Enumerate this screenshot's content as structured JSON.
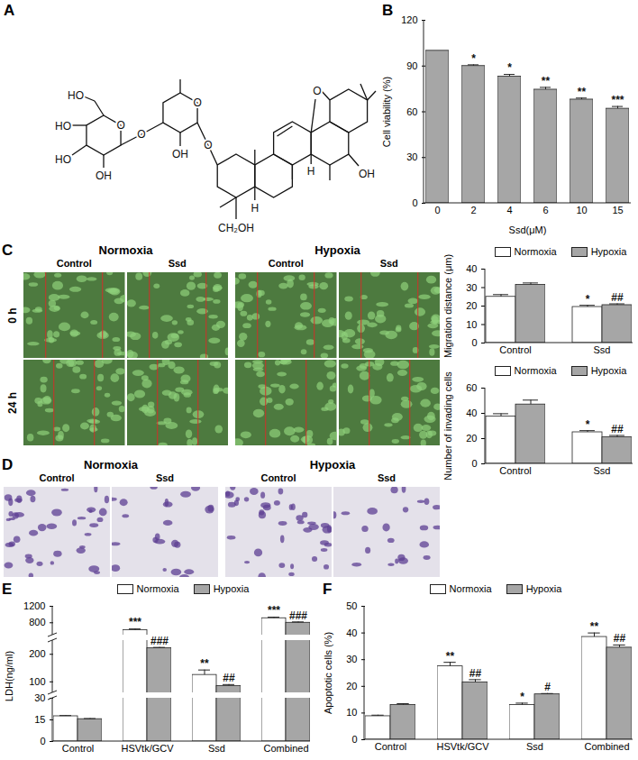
{
  "figure": {
    "A": {
      "label": "A",
      "structure_labels": [
        "HO",
        "HO",
        "HO",
        "OH",
        "O",
        "O",
        "O",
        "OH",
        "O",
        "CH₂OH",
        "H",
        "H",
        "OH",
        "O"
      ]
    },
    "C": {
      "label": "C",
      "groups": [
        "Normoxia",
        "Hypoxia"
      ],
      "columns": [
        "Control",
        "Ssd"
      ],
      "rows": [
        "0 h",
        "24 h"
      ]
    },
    "D": {
      "label": "D",
      "groups": [
        "Normoxia",
        "Hypoxia"
      ],
      "columns": [
        "Control",
        "Ssd"
      ]
    }
  },
  "chart_data": [
    {
      "type": "bar",
      "title": "B",
      "xlabel": "Ssd(μM)",
      "ylabel": "Cell viability (%)",
      "categories": [
        "0",
        "2",
        "4",
        "6",
        "10",
        "15"
      ],
      "values": [
        100,
        90,
        83,
        74.5,
        68,
        62
      ],
      "errors": [
        0,
        0.8,
        1.5,
        1.5,
        1,
        1.5
      ],
      "annotations": [
        null,
        "*",
        "*",
        "**",
        "**",
        "***"
      ],
      "color": "#a6a6a6",
      "ylim": [
        0,
        120
      ],
      "yticks": [
        0,
        30,
        60,
        90,
        120
      ]
    },
    {
      "type": "bar",
      "ylabel": "Migration distance (μm)",
      "legend": "top",
      "categories": [
        "Control",
        "Ssd"
      ],
      "series": [
        {
          "name": "Normoxia",
          "color": "#ffffff",
          "values": [
            25,
            19.5
          ],
          "errors": [
            1.2,
            0.9
          ],
          "annotations": [
            null,
            "*"
          ]
        },
        {
          "name": "Hypoxia",
          "color": "#a6a6a6",
          "values": [
            31.5,
            20.5
          ],
          "errors": [
            1,
            0.7
          ],
          "annotations": [
            null,
            "##"
          ]
        }
      ],
      "ylim": [
        0,
        40
      ],
      "yticks": [
        0,
        10,
        20,
        30,
        40
      ]
    },
    {
      "type": "bar",
      "ylabel": "Number of invading cells",
      "legend": "top",
      "categories": [
        "Control",
        "Ssd"
      ],
      "series": [
        {
          "name": "Normoxia",
          "color": "#ffffff",
          "values": [
            37.5,
            25
          ],
          "errors": [
            2.2,
            1.3
          ],
          "annotations": [
            null,
            "*"
          ]
        },
        {
          "name": "Hypoxia",
          "color": "#a6a6a6",
          "values": [
            47,
            21
          ],
          "errors": [
            3.5,
            1.5
          ],
          "annotations": [
            null,
            "##"
          ]
        }
      ],
      "ylim": [
        0,
        60
      ],
      "yticks": [
        0,
        20,
        40,
        60
      ]
    },
    {
      "type": "bar",
      "title": "E",
      "ylabel": "LDH(ng/ml)",
      "legend": "top",
      "categories": [
        "Control",
        "HSVtk/GCV",
        "Ssd",
        "Combined"
      ],
      "series": [
        {
          "name": "Normoxia",
          "color": "#ffffff",
          "values": [
            17.5,
            620,
            125,
            910
          ],
          "errors": [
            0.5,
            30,
            18,
            25
          ],
          "annotations": [
            null,
            "***",
            "**",
            "***"
          ]
        },
        {
          "name": "Hypoxia",
          "color": "#a6a6a6",
          "values": [
            15.5,
            222,
            85,
            800
          ],
          "errors": [
            0.4,
            3,
            5,
            20
          ],
          "annotations": [
            null,
            "###",
            "##",
            "###"
          ]
        }
      ],
      "y_segments": [
        {
          "ylim": [
            500,
            1200
          ],
          "yticks": [
            800,
            1200
          ]
        },
        {
          "ylim": [
            60,
            250
          ],
          "yticks": [
            100,
            200
          ]
        },
        {
          "ylim": [
            0,
            30
          ],
          "yticks": [
            0,
            15,
            30
          ]
        }
      ]
    },
    {
      "type": "bar",
      "title": "F",
      "ylabel": "Apoptotic cells (%)",
      "legend": "top",
      "categories": [
        "Control",
        "HSVtk/GCV",
        "Ssd",
        "Combined"
      ],
      "series": [
        {
          "name": "Normoxia",
          "color": "#ffffff",
          "values": [
            8.8,
            27.5,
            13,
            38.5
          ],
          "errors": [
            0.4,
            1.5,
            0.7,
            1.5
          ],
          "annotations": [
            null,
            "**",
            "*",
            "**"
          ]
        },
        {
          "name": "Hypoxia",
          "color": "#a6a6a6",
          "values": [
            13,
            21.5,
            17,
            34.5
          ],
          "errors": [
            0.5,
            1,
            0.3,
            1
          ],
          "annotations": [
            null,
            "##",
            "#",
            "##"
          ]
        }
      ],
      "ylim": [
        0,
        50
      ],
      "yticks": [
        0,
        10,
        20,
        30,
        40,
        50
      ]
    }
  ]
}
